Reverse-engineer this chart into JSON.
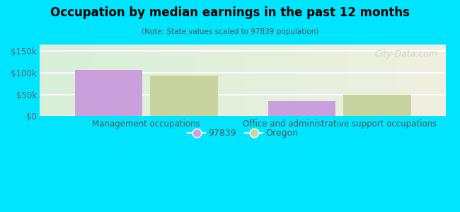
{
  "title": "Occupation by median earnings in the past 12 months",
  "subtitle": "(Note: State values scaled to 97839 population)",
  "categories": [
    "Management occupations",
    "Office and administrative support occupations"
  ],
  "values_97839": [
    107000,
    35000
  ],
  "values_oregon": [
    93000,
    50000
  ],
  "bar_color_97839": "#c9a0dc",
  "bar_color_oregon": "#c8d4a0",
  "ylim": [
    0,
    165000
  ],
  "yticks": [
    0,
    50000,
    100000,
    150000
  ],
  "ytick_labels": [
    "$0",
    "$50k",
    "$100k",
    "$150k"
  ],
  "background_outer": "#00e5ff",
  "watermark": "City-Data.com",
  "legend_97839": "97839",
  "legend_oregon": "Oregon",
  "bar_width": 0.35,
  "x_positions": [
    0,
    1
  ]
}
